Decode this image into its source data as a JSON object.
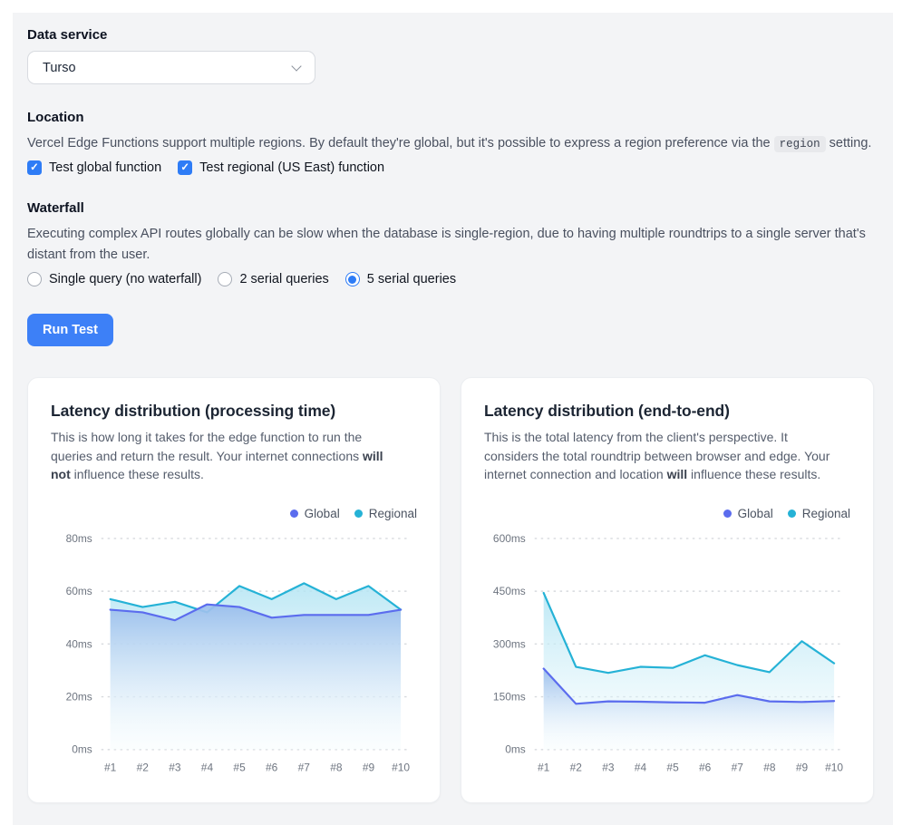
{
  "data_service": {
    "heading": "Data service",
    "selected_value": "Turso"
  },
  "location": {
    "heading": "Location",
    "desc_before": "Vercel Edge Functions support multiple regions. By default they're global, but it's possible to express a region preference via the ",
    "desc_code": "region",
    "desc_after": " setting.",
    "checkboxes": [
      {
        "label": "Test global function",
        "checked": true
      },
      {
        "label": "Test regional (US East) function",
        "checked": true
      }
    ]
  },
  "waterfall": {
    "heading": "Waterfall",
    "desc": "Executing complex API routes globally can be slow when the database is single-region, due to having multiple roundtrips to a single server that's distant from the user.",
    "radios": [
      {
        "label": "Single query (no waterfall)",
        "checked": false
      },
      {
        "label": "2 serial queries",
        "checked": false
      },
      {
        "label": "5 serial queries",
        "checked": true
      }
    ]
  },
  "run_button_label": "Run Test",
  "colors": {
    "accent_blue": "#2e7cf6",
    "button_blue": "#3d80f7",
    "global_line": "#5b6cee",
    "regional_line": "#25b2d6"
  },
  "chart_data": [
    {
      "type": "area",
      "title": "Latency distribution (processing time)",
      "desc_before": "This is how long it takes for the edge function to run the queries and return the result. Your internet connections ",
      "desc_bold": "will not",
      "desc_after": " influence these results.",
      "x": [
        "#1",
        "#2",
        "#3",
        "#4",
        "#5",
        "#6",
        "#7",
        "#8",
        "#9",
        "#10"
      ],
      "series": [
        {
          "name": "Global",
          "color": "#5b6cee",
          "fill_top": "rgba(154,190,236,0.95)",
          "fill_bottom": "rgba(255,255,255,0.15)",
          "values": [
            53,
            52,
            49,
            55,
            54,
            50,
            51,
            51,
            51,
            53
          ]
        },
        {
          "name": "Regional",
          "color": "#25b2d6",
          "fill_top": "rgba(178,228,243,0.85)",
          "fill_bottom": "rgba(235,249,252,0.25)",
          "values": [
            57,
            54,
            56,
            52,
            62,
            57,
            63,
            57,
            62,
            53
          ]
        }
      ],
      "ylim": [
        0,
        80
      ],
      "yticks": [
        0,
        20,
        40,
        60,
        80
      ],
      "ytick_labels": [
        "0ms",
        "20ms",
        "40ms",
        "60ms",
        "80ms"
      ],
      "xlabel": "",
      "ylabel": "",
      "grid": "dashed-horizontal",
      "legend_position": "top-right"
    },
    {
      "type": "area",
      "title": "Latency distribution (end-to-end)",
      "desc_before": "This is the total latency from the client's perspective. It considers the total roundtrip between browser and edge. Your internet connection and location ",
      "desc_bold": "will",
      "desc_after": " influence these results.",
      "x": [
        "#1",
        "#2",
        "#3",
        "#4",
        "#5",
        "#6",
        "#7",
        "#8",
        "#9",
        "#10"
      ],
      "series": [
        {
          "name": "Global",
          "color": "#5b6cee",
          "fill_top": "rgba(154,190,236,0.95)",
          "fill_bottom": "rgba(255,255,255,0.15)",
          "values": [
            230,
            130,
            137,
            136,
            134,
            133,
            155,
            137,
            135,
            138
          ]
        },
        {
          "name": "Regional",
          "color": "#25b2d6",
          "fill_top": "rgba(178,228,243,0.85)",
          "fill_bottom": "rgba(235,249,252,0.25)",
          "values": [
            445,
            235,
            218,
            235,
            232,
            268,
            240,
            220,
            308,
            245
          ]
        }
      ],
      "ylim": [
        0,
        600
      ],
      "yticks": [
        0,
        150,
        300,
        450,
        600
      ],
      "ytick_labels": [
        "0ms",
        "150ms",
        "300ms",
        "450ms",
        "600ms"
      ],
      "xlabel": "",
      "ylabel": "",
      "grid": "dashed-horizontal",
      "legend_position": "top-right"
    }
  ]
}
